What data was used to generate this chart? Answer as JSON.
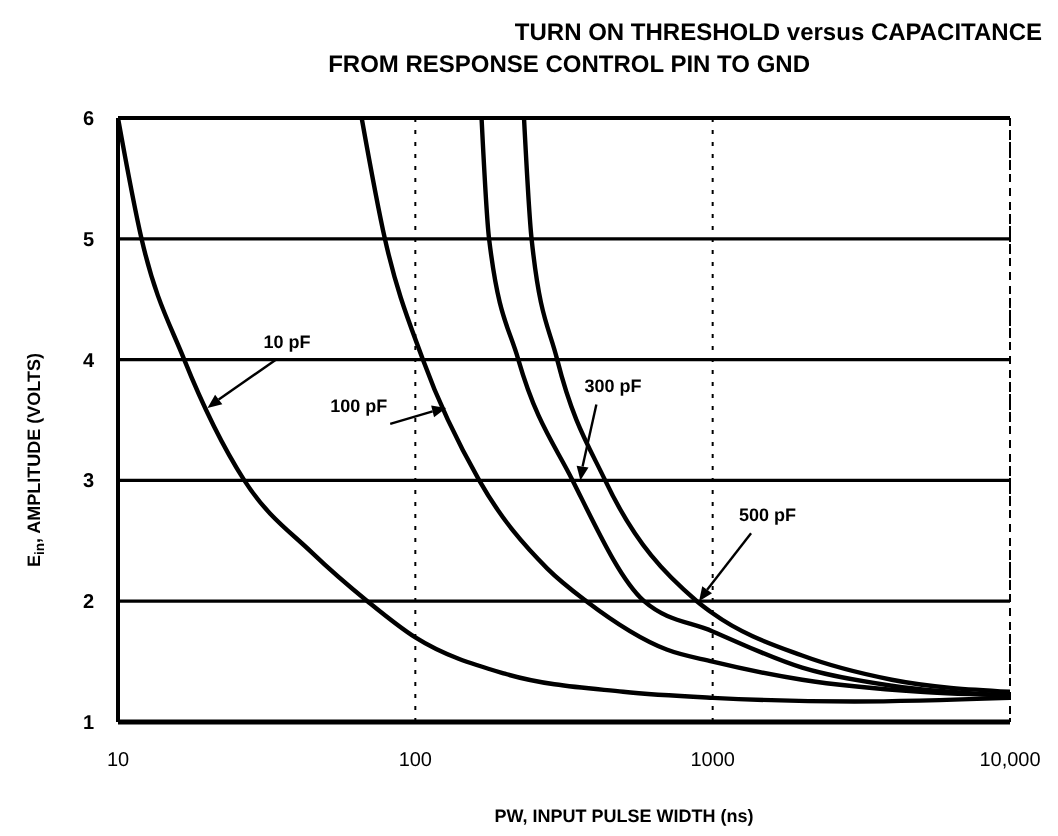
{
  "chart_data": {
    "type": "line",
    "title": "TURN ON THRESHOLD versus CAPACITANCE",
    "subtitle": "FROM RESPONSE CONTROL PIN TO GND",
    "xlabel": "PW, INPUT PULSE WIDTH (ns)",
    "ylabel": "E$_{in}$, AMPLITUDE (VOLTS)",
    "log": "x",
    "grid": true,
    "marker": "none",
    "line_style": "solid",
    "xlim": [
      10,
      10000
    ],
    "ylim": [
      1,
      6
    ],
    "xticks": [
      10,
      100,
      1000,
      {
        "value": 10000,
        "label": "10,000"
      }
    ],
    "yticks": [
      1,
      2,
      3,
      4,
      5,
      6
    ],
    "series": [
      {
        "color": "#000000",
        "x": [
          10,
          12,
          16.7,
          26.6,
          45,
          69,
          100,
          200,
          500,
          1000,
          3000,
          10000
        ],
        "values": [
          6,
          5,
          4,
          3,
          2.4,
          2,
          1.7,
          1.4,
          1.25,
          1.2,
          1.17,
          1.2
        ]
      },
      {
        "color": "#000000",
        "x": [
          66,
          79,
          106,
          164,
          278,
          376,
          700,
          1000,
          2000,
          5000,
          10000
        ],
        "values": [
          6,
          5,
          4,
          3,
          2.27,
          2,
          1.6,
          1.5,
          1.35,
          1.25,
          1.22
        ]
      },
      {
        "color": "#000000",
        "x": [
          167,
          177,
          222,
          338,
          588,
          1000,
          2000,
          4000,
          10000
        ],
        "values": [
          6,
          5,
          4,
          3,
          2,
          1.75,
          1.45,
          1.3,
          1.22
        ]
      },
      {
        "color": "#000000",
        "x": [
          232,
          246,
          300,
          435,
          885,
          1000,
          2000,
          4000,
          10000
        ],
        "values": [
          6,
          5,
          4,
          3,
          2,
          1.9,
          1.55,
          1.35,
          1.25
        ]
      }
    ],
    "annotations": [
      {
        "text": "10 pF",
        "x": 20,
        "y": 3.6
      },
      {
        "text": "100 pF",
        "x": 127,
        "y": 3.6
      },
      {
        "text": "300 pF",
        "x": 359,
        "y": 3
      },
      {
        "text": "500 pF",
        "x": 900,
        "y": 2
      }
    ]
  }
}
